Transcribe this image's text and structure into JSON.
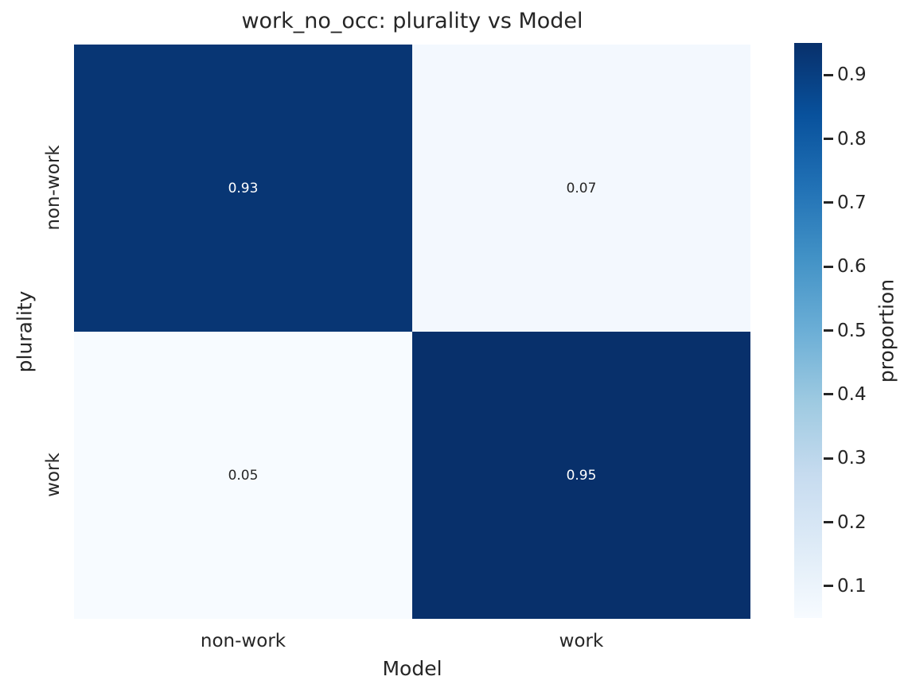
{
  "figure": {
    "background": "#ffffff",
    "text_color": "#262626"
  },
  "chart_data": {
    "type": "heatmap",
    "title": "work_no_occ: plurality vs Model",
    "xlabel": "Model",
    "ylabel": "plurality",
    "x_categories": [
      "non-work",
      "work"
    ],
    "y_categories": [
      "non-work",
      "work"
    ],
    "values": [
      [
        0.93,
        0.07
      ],
      [
        0.05,
        0.95
      ]
    ],
    "vmin": 0.05,
    "vmax": 0.95,
    "grid": false,
    "legend": "none",
    "annotation_colors": {
      "on_dark": "#ffffff",
      "on_light": "#262626"
    },
    "colormap": {
      "name": "Blues",
      "stops": [
        "#f7fbff",
        "#deebf7",
        "#c6dbef",
        "#9ecae1",
        "#6baed6",
        "#4292c6",
        "#2171b5",
        "#08519c",
        "#08306b"
      ]
    },
    "colorbar": {
      "label": "proportion",
      "ticks": [
        0.9,
        0.8,
        0.7,
        0.6,
        0.5,
        0.4,
        0.3,
        0.2,
        0.1
      ]
    }
  }
}
